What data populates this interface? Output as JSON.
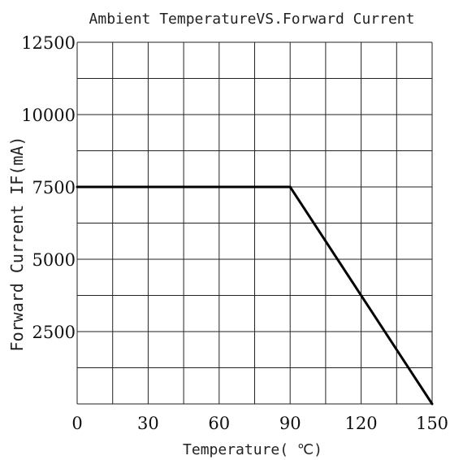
{
  "chart_data": {
    "type": "line",
    "title": "Ambient TemperatureVS.Forward Current",
    "xlabel": "Temperature( ℃)",
    "ylabel": "Forward Current IF(mA)",
    "xlim": [
      0,
      150
    ],
    "ylim": [
      0,
      12500
    ],
    "x_ticks": [
      0,
      30,
      60,
      90,
      120,
      150
    ],
    "y_ticks": [
      2500,
      5000,
      7500,
      10000,
      12500
    ],
    "grid": true,
    "x_grid_step": 15,
    "y_grid_step": 1250,
    "series": [
      {
        "x": [
          0,
          90,
          150
        ],
        "y": [
          7500,
          7500,
          0
        ]
      }
    ],
    "colors": {
      "line": "#000000",
      "grid": "#222222"
    }
  }
}
